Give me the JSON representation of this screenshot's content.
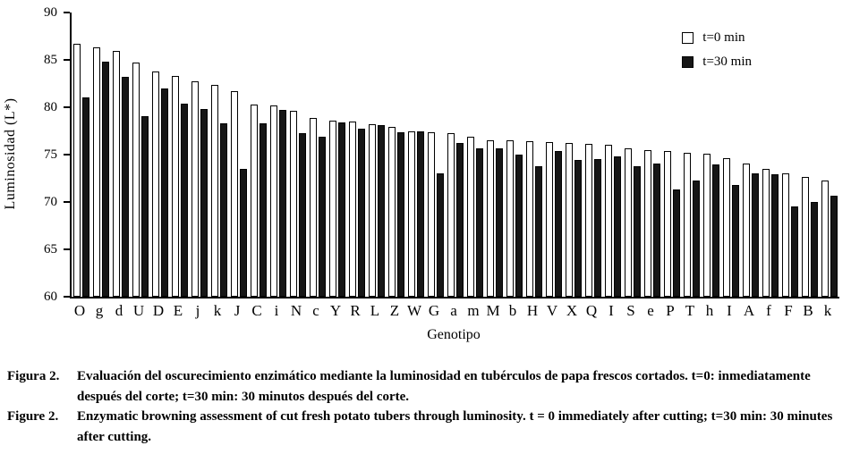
{
  "chart_data": {
    "type": "bar",
    "title": "",
    "xlabel": "Genotipo",
    "ylabel": "Luminosidad (L*)",
    "ylim": [
      60,
      90
    ],
    "yticks": [
      60,
      65,
      70,
      75,
      80,
      85,
      90
    ],
    "grid": false,
    "legend_position": "top-right",
    "categories": [
      "O",
      "g",
      "d",
      "U",
      "D",
      "E",
      "j",
      "k",
      "J",
      "C",
      "i",
      "N",
      "c",
      "Y",
      "R",
      "L",
      "Z",
      "W",
      "G",
      "a",
      "m",
      "M",
      "b",
      "H",
      "V",
      "X",
      "Q",
      "I",
      "S",
      "e",
      "P",
      "T",
      "h",
      "I",
      "A",
      "f",
      "F",
      "B",
      "k"
    ],
    "series": [
      {
        "name": "t=0 min",
        "color": "#ffffff",
        "values": [
          86.7,
          86.3,
          85.9,
          84.7,
          83.8,
          83.3,
          82.7,
          82.4,
          81.7,
          80.3,
          80.2,
          79.6,
          78.9,
          78.6,
          78.5,
          78.2,
          77.9,
          77.5,
          77.4,
          77.3,
          76.9,
          76.5,
          76.5,
          76.4,
          76.3,
          76.2,
          76.1,
          76.0,
          75.7,
          75.5,
          75.4,
          75.2,
          75.1,
          74.6,
          74.1,
          73.5,
          73.0,
          72.6,
          72.3
        ]
      },
      {
        "name": "t=30 min",
        "color": "#161616",
        "values": [
          81.0,
          84.8,
          83.2,
          79.1,
          82.0,
          80.4,
          79.8,
          78.3,
          73.5,
          78.3,
          79.7,
          77.3,
          76.9,
          78.4,
          77.7,
          78.1,
          77.4,
          77.5,
          73.0,
          76.2,
          75.7,
          75.7,
          75.0,
          73.8,
          75.4,
          74.4,
          74.5,
          74.8,
          73.8,
          74.1,
          71.3,
          72.3,
          74.0,
          71.8,
          73.0,
          72.9,
          69.5,
          70.0,
          70.7
        ]
      }
    ]
  },
  "caption": {
    "entries": [
      {
        "label": "Figura 2.",
        "text": "Evaluación del oscurecimiento enzimático mediante la luminosidad en tubérculos de papa frescos cortados. t=0: inmediatamente después del corte; t=30 min: 30 minutos después del corte."
      },
      {
        "label": "Figure 2.",
        "text": "Enzymatic browning assessment of cut fresh potato tubers through luminosity. t = 0 immediately after cutting; t=30 min: 30 minutes after cutting."
      }
    ]
  }
}
